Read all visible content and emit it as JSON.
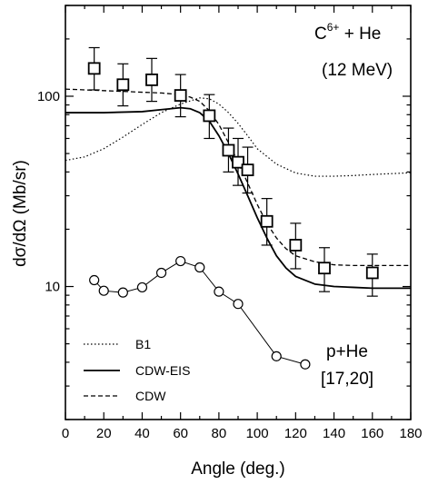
{
  "chart_data": {
    "type": "scatter",
    "title": "",
    "xlabel": "Angle (deg.)",
    "ylabel": "dσ/dΩ (Mb/sr)",
    "x_ticks": [
      "0",
      "20",
      "40",
      "60",
      "80",
      "100",
      "120",
      "140",
      "160",
      "180"
    ],
    "y_ticks": [
      "10",
      "100"
    ],
    "xlim": [
      0,
      180
    ],
    "ylim": [
      2,
      300
    ],
    "y_scale": "log",
    "grid": false,
    "annotations": {
      "system_prefix": "C",
      "system_sup": "6+",
      "system_suffix": " + He",
      "energy": "(12 MeV)",
      "proton_system": "p+He",
      "reference": "[17,20]"
    },
    "legend": {
      "placement": "bottom-left",
      "entries": [
        {
          "label": "B1",
          "style": "dotted"
        },
        {
          "label": "CDW-EIS",
          "style": "solid"
        },
        {
          "label": "CDW",
          "style": "dashed"
        }
      ]
    },
    "series": [
      {
        "name": "C6+ + He (12 MeV) data",
        "kind": "points",
        "marker": "square",
        "x": [
          15,
          30,
          45,
          60,
          75,
          85,
          90,
          95,
          105,
          120,
          135,
          160
        ],
        "y": [
          140,
          115,
          122,
          101,
          79,
          52,
          45,
          41,
          22,
          16.5,
          12.5,
          11.8
        ],
        "err_low": [
          108,
          89,
          94,
          78,
          60,
          40,
          34,
          31,
          16.5,
          12.4,
          9.4,
          8.9
        ],
        "err_high": [
          180,
          148,
          158,
          130,
          102,
          68,
          60,
          54,
          29,
          21.5,
          16,
          14.8
        ]
      },
      {
        "name": "p+He [17,20]",
        "kind": "points",
        "marker": "circle",
        "x": [
          15,
          20,
          30,
          40,
          50,
          60,
          70,
          80,
          90,
          110,
          125
        ],
        "y": [
          10.8,
          9.5,
          9.3,
          9.9,
          11.8,
          13.6,
          12.6,
          9.4,
          8.1,
          4.3,
          3.9
        ]
      },
      {
        "name": "B1",
        "kind": "line",
        "style": "dotted",
        "x": [
          0,
          10,
          20,
          30,
          40,
          50,
          60,
          70,
          75,
          80,
          85,
          90,
          95,
          100,
          110,
          120,
          130,
          140,
          150,
          160,
          170,
          180
        ],
        "y": [
          46,
          48,
          53,
          61,
          71,
          82,
          91,
          98,
          97,
          91,
          82,
          72,
          62,
          53,
          44,
          39.5,
          38,
          38,
          38.3,
          38.8,
          39.2,
          39.6
        ]
      },
      {
        "name": "CDW-EIS",
        "kind": "line",
        "style": "solid",
        "x": [
          0,
          20,
          40,
          50,
          60,
          65,
          70,
          75,
          80,
          85,
          90,
          95,
          100,
          105,
          110,
          115,
          120,
          130,
          140,
          150,
          160,
          170,
          180
        ],
        "y": [
          82,
          82,
          83,
          85,
          87,
          86,
          82,
          74,
          62,
          50,
          39,
          30,
          23,
          18,
          14.5,
          12.5,
          11.3,
          10.3,
          10,
          9.9,
          9.8,
          9.8,
          9.8
        ]
      },
      {
        "name": "CDW",
        "kind": "line",
        "style": "dashed",
        "x": [
          0,
          10,
          20,
          30,
          40,
          50,
          60,
          65,
          70,
          75,
          80,
          85,
          90,
          95,
          100,
          105,
          110,
          115,
          120,
          130,
          140,
          150,
          160,
          170,
          180
        ],
        "y": [
          109,
          108,
          107,
          106,
          105,
          104,
          102,
          99,
          94,
          84,
          71,
          57,
          45,
          35,
          27,
          21.5,
          18,
          15.8,
          14.5,
          13.5,
          13,
          12.9,
          12.9,
          12.9,
          12.9
        ]
      }
    ]
  }
}
